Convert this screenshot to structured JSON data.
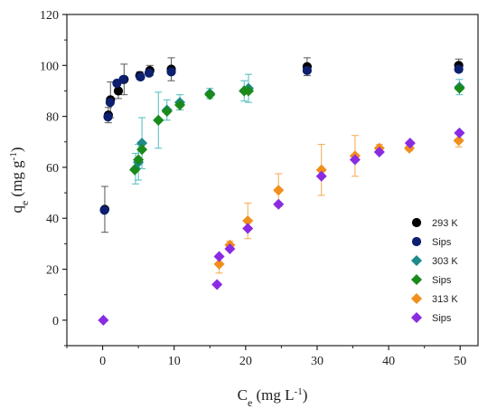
{
  "chart_data": {
    "type": "scatter",
    "xlabel": {
      "base": "C",
      "sub": "e",
      "unit_pre": " (mg L",
      "unit_sup": "-1",
      "unit_post": ")"
    },
    "ylabel": {
      "base": "q",
      "sub": "e",
      "unit_pre": " (mg g",
      "unit_sup": "-1",
      "unit_post": ")"
    },
    "xlim": [
      -5,
      52.5
    ],
    "ylim": [
      -10,
      120
    ],
    "xticks": [
      0,
      10,
      20,
      30,
      40,
      50
    ],
    "yticks": [
      0,
      20,
      40,
      60,
      80,
      100,
      120
    ],
    "legend_position": "bottom-right",
    "series": [
      {
        "name": "293 K",
        "marker": "circle",
        "color": "#000000",
        "errorbar_color": "#555555",
        "points": [
          {
            "x": 0.3,
            "y": 43.5,
            "err": 9
          },
          {
            "x": 0.8,
            "y": 80.5,
            "err": 3
          },
          {
            "x": 1.1,
            "y": 86.5,
            "err": 7
          },
          {
            "x": 2.2,
            "y": 90,
            "err": 3
          },
          {
            "x": 3.0,
            "y": 94.5,
            "err": 6
          },
          {
            "x": 5.2,
            "y": 96,
            "err": 1.5
          },
          {
            "x": 6.6,
            "y": 98,
            "err": 2
          },
          {
            "x": 9.6,
            "y": 98.5,
            "err": 4.5
          },
          {
            "x": 28.6,
            "y": 99.5,
            "err": 3.5
          },
          {
            "x": 49.8,
            "y": 100,
            "err": 2.5
          }
        ]
      },
      {
        "name": "Sips",
        "marker": "circle",
        "color": "#0d1f6e",
        "errorbar_color": null,
        "points": [
          {
            "x": 0.25,
            "y": 43.2
          },
          {
            "x": 0.75,
            "y": 79.8
          },
          {
            "x": 1.05,
            "y": 85.5
          },
          {
            "x": 2.0,
            "y": 93
          },
          {
            "x": 2.9,
            "y": 94.5
          },
          {
            "x": 5.3,
            "y": 95.5
          },
          {
            "x": 6.5,
            "y": 97
          },
          {
            "x": 9.6,
            "y": 97.5
          },
          {
            "x": 28.6,
            "y": 98
          },
          {
            "x": 49.8,
            "y": 98.5
          }
        ]
      },
      {
        "name": "303 K",
        "marker": "diamond",
        "color": "#1f8a8a",
        "errorbar_color": "#4fbcbc",
        "points": [
          {
            "x": 4.6,
            "y": 59.5,
            "err": 6
          },
          {
            "x": 5.0,
            "y": 62,
            "err": 7
          },
          {
            "x": 5.5,
            "y": 69.5,
            "err": 10
          },
          {
            "x": 7.8,
            "y": 78.5,
            "err": 11
          },
          {
            "x": 9.0,
            "y": 82.5,
            "err": 4
          },
          {
            "x": 10.8,
            "y": 85.5,
            "err": 3
          },
          {
            "x": 15.0,
            "y": 89,
            "err": 2
          },
          {
            "x": 19.8,
            "y": 90,
            "err": 4
          },
          {
            "x": 20.4,
            "y": 91,
            "err": 5.5
          },
          {
            "x": 49.9,
            "y": 91.5,
            "err": 3
          }
        ]
      },
      {
        "name": "Sips",
        "marker": "diamond",
        "color": "#1a8a1a",
        "errorbar_color": null,
        "points": [
          {
            "x": 4.5,
            "y": 59
          },
          {
            "x": 5.0,
            "y": 63
          },
          {
            "x": 5.5,
            "y": 67
          },
          {
            "x": 7.8,
            "y": 78.5
          },
          {
            "x": 9.0,
            "y": 82
          },
          {
            "x": 10.8,
            "y": 84.5
          },
          {
            "x": 15.0,
            "y": 88.5
          },
          {
            "x": 19.8,
            "y": 90
          },
          {
            "x": 20.4,
            "y": 90
          },
          {
            "x": 49.9,
            "y": 91
          }
        ]
      },
      {
        "name": "313 K",
        "marker": "diamond",
        "color": "#f28e1c",
        "errorbar_color": "#f5a94e",
        "points": [
          {
            "x": 16.3,
            "y": 22,
            "err": 3.5
          },
          {
            "x": 17.8,
            "y": 29.5,
            "err": 1.5
          },
          {
            "x": 20.3,
            "y": 39,
            "err": 7
          },
          {
            "x": 24.6,
            "y": 51,
            "err": 6.5
          },
          {
            "x": 30.6,
            "y": 59,
            "err": 10
          },
          {
            "x": 35.3,
            "y": 64.5,
            "err": 8
          },
          {
            "x": 38.7,
            "y": 67.5,
            "err": 1.5
          },
          {
            "x": 42.9,
            "y": 67.5,
            "err": 1
          },
          {
            "x": 49.8,
            "y": 70.5,
            "err": 2.5
          }
        ]
      },
      {
        "name": "Sips",
        "marker": "diamond",
        "color": "#8a2be2",
        "errorbar_color": null,
        "points": [
          {
            "x": 0.1,
            "y": 0
          },
          {
            "x": 16.0,
            "y": 14
          },
          {
            "x": 16.3,
            "y": 25
          },
          {
            "x": 17.8,
            "y": 28
          },
          {
            "x": 20.3,
            "y": 36
          },
          {
            "x": 24.6,
            "y": 45.5
          },
          {
            "x": 30.6,
            "y": 56.5
          },
          {
            "x": 35.3,
            "y": 63
          },
          {
            "x": 38.7,
            "y": 66
          },
          {
            "x": 43.0,
            "y": 69.5
          },
          {
            "x": 49.9,
            "y": 73.5
          }
        ]
      }
    ]
  }
}
